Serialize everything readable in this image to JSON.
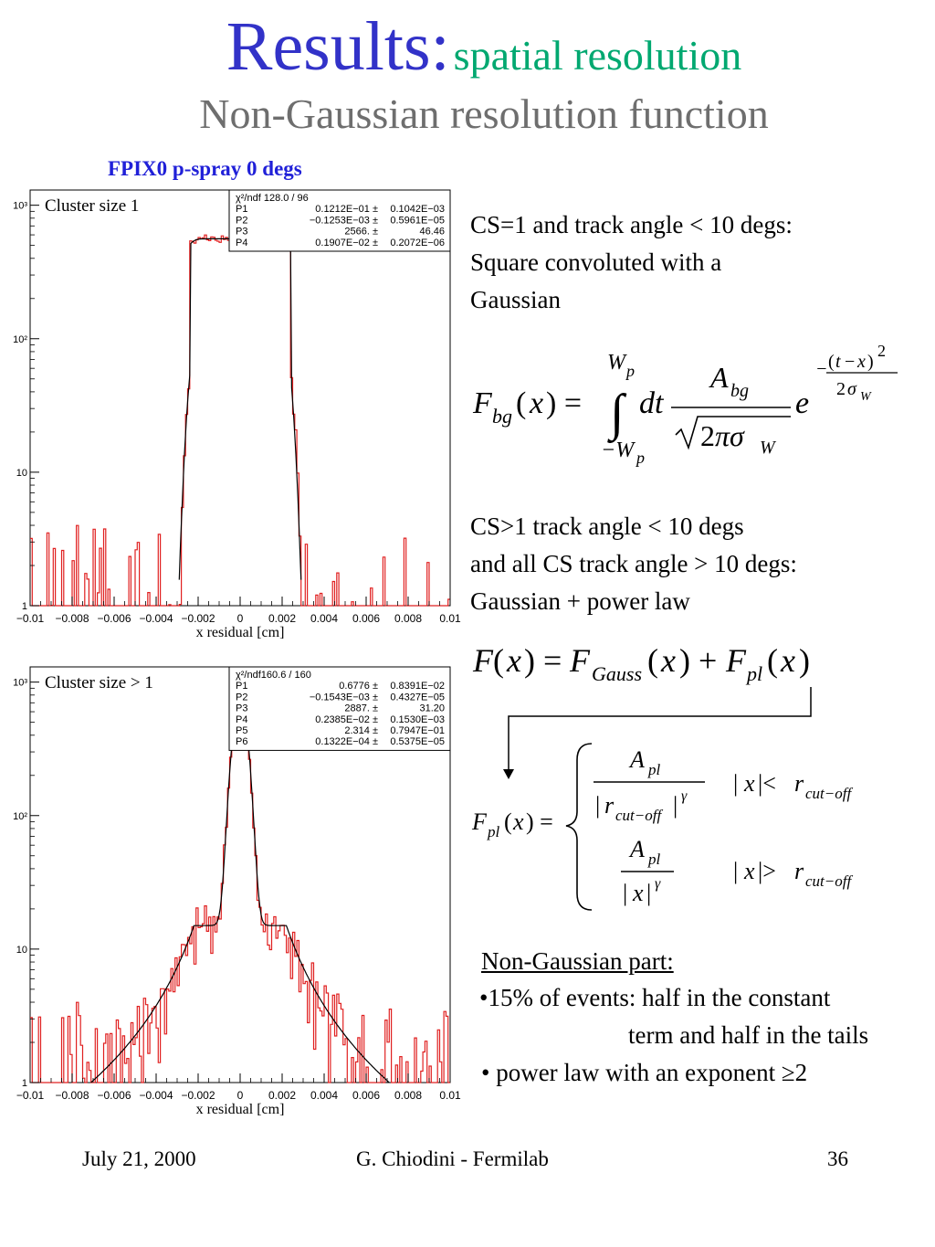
{
  "slide": {
    "title_main": "Results:",
    "title_sub": "spatial resolution",
    "subtitle": "Non-Gaussian resolution function",
    "plot_title": "FPIX0 p-spray 0 degs"
  },
  "text": {
    "block1": [
      "CS=1 and track angle < 10 degs:",
      "Square convoluted with a",
      "Gaussian"
    ],
    "block2": [
      "CS>1 track angle < 10 degs",
      "and all CS track angle > 10 degs:",
      "Gaussian + power law"
    ],
    "ng_head": "Non-Gaussian part:",
    "ng_line1": "•15% of events: half in the constant",
    "ng_line2": "term and half in the tails",
    "ng_line3": "• power law with an exponent ≥2"
  },
  "footer": {
    "date": "July 21, 2000",
    "author": "G. Chiodini - Fermilab",
    "page": "36"
  },
  "colors": {
    "title": "#3232c8",
    "subtitle_accent": "#00a870",
    "hist": "#e02020",
    "fit": "#000000",
    "plot_title": "#2020d8"
  },
  "chart_data": [
    {
      "type": "area",
      "label": "Cluster size 1",
      "xlabel": "x residual [cm]",
      "ylabel": "",
      "log_y": true,
      "xlim": [
        -0.01,
        0.01
      ],
      "ylim": [
        1,
        1300
      ],
      "x_ticks": [
        "-0.01",
        "-0.008",
        "-0.006",
        "-0.004",
        "-0.002",
        "0",
        "0.002",
        "0.004",
        "0.006",
        "0.008",
        "0.01"
      ],
      "y_ticks": [
        "1",
        "10",
        "10²",
        "10³"
      ],
      "fit_model": "square_gauss",
      "fit_params": {
        "halfwidth": 0.0024,
        "sigma": 0.00025,
        "plateau": 560
      },
      "stats": {
        "chi2": "χ²/ndf 128.0   /   96",
        "rows": [
          [
            "P1",
            "0.1212E−01 ±",
            "0.1042E−03"
          ],
          [
            "P2",
            "−0.1253E−03 ±",
            "0.5961E−05"
          ],
          [
            "P3",
            "2566. ±",
            "46.46"
          ],
          [
            "P4",
            "0.1907E−02 ±",
            "0.2072E−06"
          ]
        ]
      }
    },
    {
      "type": "area",
      "label": "Cluster size > 1",
      "xlabel": "x residual [cm]",
      "ylabel": "",
      "log_y": true,
      "xlim": [
        -0.01,
        0.01
      ],
      "ylim": [
        1,
        1300
      ],
      "x_ticks": [
        "-0.01",
        "-0.008",
        "-0.006",
        "-0.004",
        "-0.002",
        "0",
        "0.002",
        "0.004",
        "0.006",
        "0.008",
        "0.01"
      ],
      "y_ticks": [
        "1",
        "10",
        "10²",
        "10³"
      ],
      "fit_model": "gauss_plateau_powerlaw",
      "fit_params": {
        "peak": 780,
        "sigma": 0.0003,
        "plateau": 15,
        "plateau_halfwidth": 0.0022
      },
      "stats": {
        "chi2": "χ²/ndf160.6   /   160",
        "rows": [
          [
            "P1",
            "0.6776 ±",
            "0.8391E−02"
          ],
          [
            "P2",
            "−0.1543E−03 ±",
            "0.4327E−05"
          ],
          [
            "P3",
            "2887. ±",
            "31.20"
          ],
          [
            "P4",
            "0.2385E−02 ±",
            "0.1530E−03"
          ],
          [
            "P5",
            "2.314 ±",
            "0.7947E−01"
          ],
          [
            "P6",
            "0.1322E−04 ±",
            "0.5375E−05"
          ]
        ]
      }
    }
  ]
}
